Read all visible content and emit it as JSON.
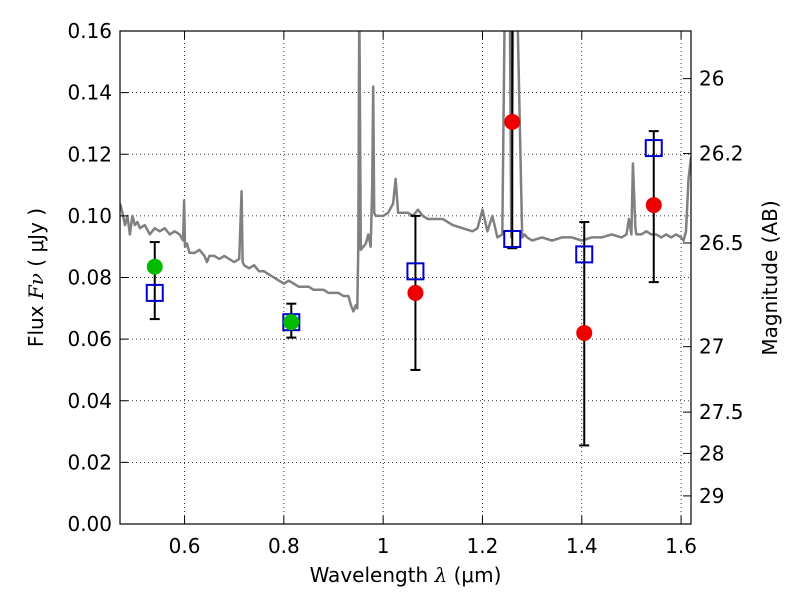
{
  "chart_data": {
    "type": "scatter",
    "title": "",
    "xlabel": "Wavelength",
    "xlabel_symbol": "λ",
    "xlabel_unit": "(μm)",
    "ylabel": "Flux",
    "ylabel_symbol": "Fν",
    "ylabel_unit": "( μJy )",
    "ylabel_right": "Magnitude (AB)",
    "xlim": [
      0.47,
      1.62
    ],
    "ylim": [
      0.0,
      0.16
    ],
    "grid": true,
    "x_ticks": [
      {
        "value": 0.6,
        "label": "0.6"
      },
      {
        "value": 0.8,
        "label": "0.8"
      },
      {
        "value": 1.0,
        "label": "1"
      },
      {
        "value": 1.2,
        "label": "1.2"
      },
      {
        "value": 1.4,
        "label": "1.4"
      },
      {
        "value": 1.6,
        "label": "1.6"
      }
    ],
    "y_ticks": [
      {
        "value": 0.0,
        "label": "0.00"
      },
      {
        "value": 0.02,
        "label": "0.02"
      },
      {
        "value": 0.04,
        "label": "0.04"
      },
      {
        "value": 0.06,
        "label": "0.06"
      },
      {
        "value": 0.08,
        "label": "0.08"
      },
      {
        "value": 0.1,
        "label": "0.10"
      },
      {
        "value": 0.12,
        "label": "0.12"
      },
      {
        "value": 0.14,
        "label": "0.14"
      },
      {
        "value": 0.16,
        "label": "0.16"
      }
    ],
    "right_ticks": [
      {
        "mag": 26,
        "label": "26"
      },
      {
        "mag": 26.2,
        "label": "26.2"
      },
      {
        "mag": 26.5,
        "label": "26.5"
      },
      {
        "mag": 27,
        "label": "27"
      },
      {
        "mag": 27.5,
        "label": "27.5"
      },
      {
        "mag": 28,
        "label": "28"
      },
      {
        "mag": 29,
        "label": "29"
      }
    ],
    "colors": {
      "spectrum": "#808080",
      "green": "#00bb00",
      "red": "#ee0000",
      "square": "#0000cc",
      "errorbar": "#000000"
    },
    "spectrum": {
      "name": "model spectrum",
      "x": [
        0.47,
        0.475,
        0.48,
        0.485,
        0.49,
        0.495,
        0.5,
        0.505,
        0.51,
        0.52,
        0.53,
        0.54,
        0.55,
        0.56,
        0.57,
        0.58,
        0.59,
        0.597,
        0.599,
        0.601,
        0.605,
        0.61,
        0.62,
        0.63,
        0.64,
        0.645,
        0.65,
        0.66,
        0.67,
        0.68,
        0.69,
        0.7,
        0.71,
        0.715,
        0.717,
        0.72,
        0.73,
        0.74,
        0.75,
        0.76,
        0.77,
        0.78,
        0.79,
        0.8,
        0.81,
        0.82,
        0.83,
        0.84,
        0.85,
        0.86,
        0.87,
        0.88,
        0.89,
        0.9,
        0.91,
        0.92,
        0.93,
        0.935,
        0.94,
        0.945,
        0.948,
        0.95,
        0.952,
        0.955,
        0.96,
        0.965,
        0.97,
        0.975,
        0.978,
        0.98,
        0.982,
        0.985,
        0.99,
        1.0,
        1.01,
        1.02,
        1.025,
        1.03,
        1.04,
        1.05,
        1.06,
        1.07,
        1.08,
        1.09,
        1.1,
        1.12,
        1.14,
        1.16,
        1.18,
        1.19,
        1.2,
        1.21,
        1.22,
        1.23,
        1.24,
        1.245,
        1.25,
        1.255,
        1.258,
        1.262,
        1.27,
        1.28,
        1.285,
        1.29,
        1.3,
        1.32,
        1.34,
        1.36,
        1.38,
        1.4,
        1.42,
        1.44,
        1.46,
        1.48,
        1.49,
        1.495,
        1.5,
        1.503,
        1.508,
        1.51,
        1.52,
        1.53,
        1.54,
        1.55,
        1.56,
        1.57,
        1.58,
        1.59,
        1.6,
        1.605,
        1.61,
        1.615,
        1.62
      ],
      "y": [
        0.104,
        0.101,
        0.097,
        0.1,
        0.094,
        0.1,
        0.097,
        0.098,
        0.096,
        0.097,
        0.094,
        0.096,
        0.095,
        0.096,
        0.094,
        0.095,
        0.094,
        0.092,
        0.105,
        0.09,
        0.091,
        0.088,
        0.088,
        0.089,
        0.087,
        0.085,
        0.087,
        0.087,
        0.086,
        0.087,
        0.086,
        0.085,
        0.086,
        0.108,
        0.085,
        0.084,
        0.083,
        0.084,
        0.082,
        0.082,
        0.081,
        0.08,
        0.079,
        0.078,
        0.079,
        0.078,
        0.077,
        0.077,
        0.077,
        0.076,
        0.076,
        0.076,
        0.075,
        0.075,
        0.075,
        0.074,
        0.074,
        0.071,
        0.069,
        0.071,
        0.07,
        0.09,
        0.17,
        0.089,
        0.09,
        0.091,
        0.094,
        0.09,
        0.11,
        0.142,
        0.101,
        0.1,
        0.1,
        0.1,
        0.101,
        0.104,
        0.112,
        0.101,
        0.101,
        0.101,
        0.1,
        0.102,
        0.1,
        0.099,
        0.099,
        0.099,
        0.097,
        0.096,
        0.095,
        0.096,
        0.102,
        0.095,
        0.1,
        0.093,
        0.094,
        0.17,
        0.17,
        0.17,
        0.093,
        0.17,
        0.17,
        0.093,
        0.094,
        0.093,
        0.092,
        0.093,
        0.092,
        0.093,
        0.093,
        0.092,
        0.093,
        0.093,
        0.094,
        0.093,
        0.094,
        0.099,
        0.094,
        0.117,
        0.096,
        0.094,
        0.094,
        0.095,
        0.094,
        0.094,
        0.093,
        0.094,
        0.093,
        0.094,
        0.093,
        0.092,
        0.095,
        0.112,
        0.119
      ]
    },
    "series": [
      {
        "name": "green points",
        "marker": "circle",
        "x": [
          0.54,
          0.815
        ],
        "y": [
          0.0835,
          0.0655
        ]
      },
      {
        "name": "red points",
        "marker": "circle",
        "x": [
          1.065,
          1.26,
          1.405,
          1.545
        ],
        "y": [
          0.075,
          0.1305,
          0.062,
          0.1035
        ]
      },
      {
        "name": "open squares with error bars",
        "marker": "square",
        "x": [
          0.54,
          0.815,
          1.065,
          1.26,
          1.405,
          1.545
        ],
        "y": [
          0.075,
          0.0655,
          0.082,
          0.0925,
          0.0875,
          0.122
        ],
        "yerr_low": [
          0.0665,
          0.0605,
          0.05,
          0.0895,
          0.0255,
          0.0785
        ],
        "yerr_high": [
          0.0915,
          0.0715,
          0.1,
          0.17,
          0.098,
          0.1275
        ]
      }
    ]
  }
}
